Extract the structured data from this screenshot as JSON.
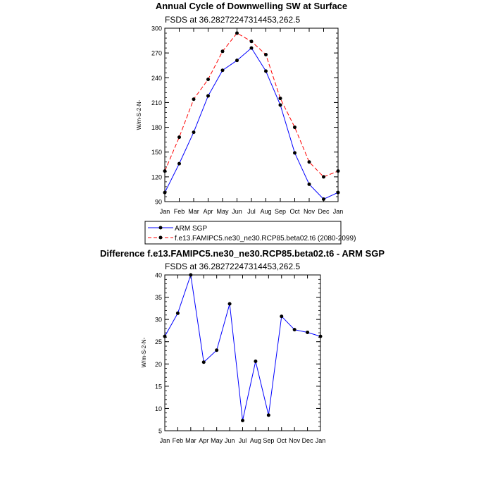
{
  "chart_data": [
    {
      "type": "line",
      "title": "Annual Cycle of Downwelling SW at Surface",
      "subtitle": "FSDS at 36.28272247314453,262.5",
      "ylabel": "W/m-S-2-N-",
      "categories": [
        "Jan",
        "Feb",
        "Mar",
        "Apr",
        "May",
        "Jun",
        "Jul",
        "Aug",
        "Sep",
        "Oct",
        "Nov",
        "Dec",
        "Jan"
      ],
      "ylim": [
        90,
        300
      ],
      "yticks": [
        "90",
        "120",
        "150",
        "180",
        "210",
        "240",
        "270",
        "300"
      ],
      "legend_position": "bottom",
      "series": [
        {
          "name": "ARM SGP",
          "color": "#0000ff",
          "style": "solid",
          "values": [
            101,
            136,
            174,
            218,
            249,
            261,
            276,
            248,
            207,
            149,
            111,
            93,
            101
          ]
        },
        {
          "name": "f.e13.FAMIPC5.ne30_ne30.RCP85.beta02.t6 (2080-2099)",
          "color": "#ff0000",
          "style": "dashed",
          "values": [
            127,
            168,
            214,
            238,
            272,
            294,
            284,
            268,
            215,
            180,
            138,
            120,
            127
          ]
        }
      ]
    },
    {
      "type": "line",
      "title": "Difference f.e13.FAMIPC5.ne30_ne30.RCP85.beta02.t6 - ARM SGP",
      "subtitle": "FSDS at 36.28272247314453,262.5",
      "ylabel": "W/m-S-2-N-",
      "categories": [
        "Jan",
        "Feb",
        "Mar",
        "Apr",
        "May",
        "Jun",
        "Jul",
        "Aug",
        "Sep",
        "Oct",
        "Nov",
        "Dec",
        "Jan"
      ],
      "ylim": [
        5,
        40
      ],
      "yticks": [
        "5",
        "10",
        "15",
        "20",
        "25",
        "30",
        "35",
        "40"
      ],
      "series": [
        {
          "color": "#0000ff",
          "style": "solid",
          "values": [
            26.2,
            31.4,
            40.0,
            20.4,
            23.1,
            33.5,
            7.3,
            20.6,
            8.5,
            30.7,
            27.7,
            27.1,
            26.2
          ]
        }
      ]
    }
  ]
}
